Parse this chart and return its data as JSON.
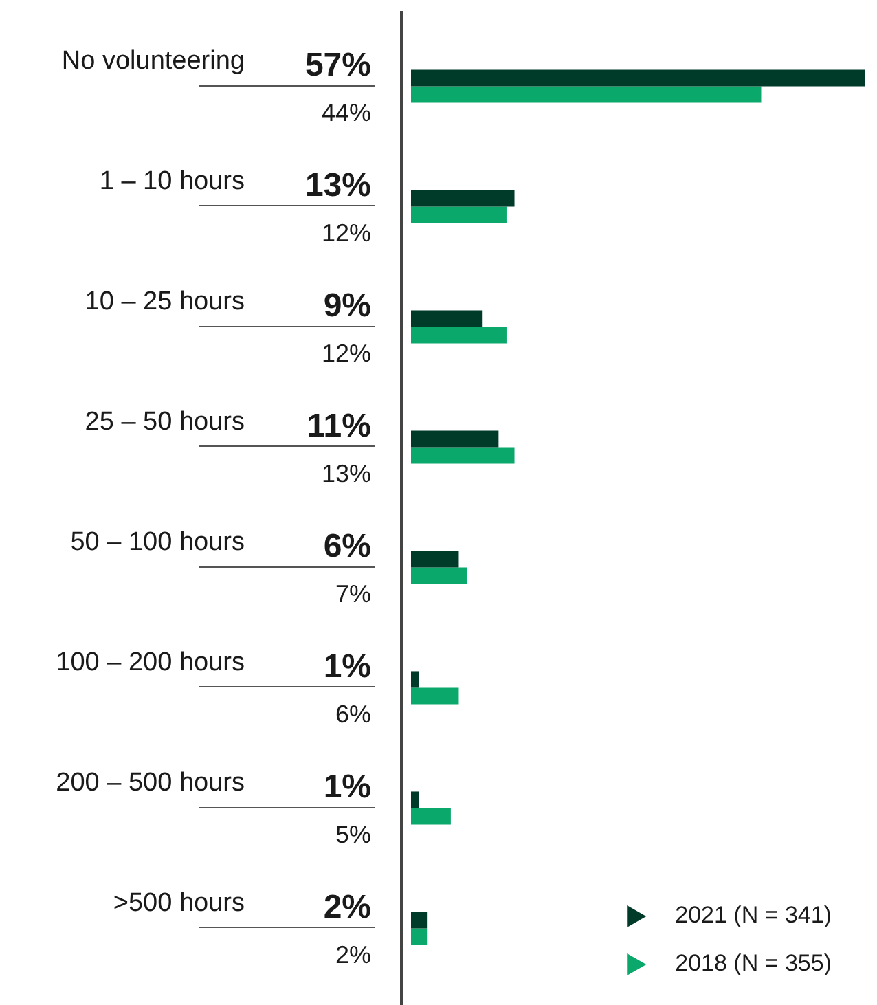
{
  "chart_data": {
    "type": "bar",
    "orientation": "horizontal",
    "categories": [
      "No volunteering",
      "1 – 10 hours",
      "10 – 25 hours",
      "25 – 50 hours",
      "50 – 100 hours",
      "100 – 200 hours",
      "200 – 500 hours",
      ">500 hours"
    ],
    "series": [
      {
        "name": "2021 (N = 341)",
        "color": "#003b2a",
        "values": [
          57,
          13,
          9,
          11,
          6,
          1,
          1,
          2
        ],
        "value_labels": [
          "57%",
          "13%",
          "9%",
          "11%",
          "6%",
          "1%",
          "1%",
          "2%"
        ]
      },
      {
        "name": "2018 (N = 355)",
        "color": "#0aa86a",
        "values": [
          44,
          12,
          12,
          13,
          7,
          6,
          5,
          2
        ],
        "value_labels": [
          "44%",
          "12%",
          "12%",
          "13%",
          "7%",
          "6%",
          "5%",
          "2%"
        ]
      }
    ],
    "legend": "bottom right",
    "tick_labels": "y"
  }
}
